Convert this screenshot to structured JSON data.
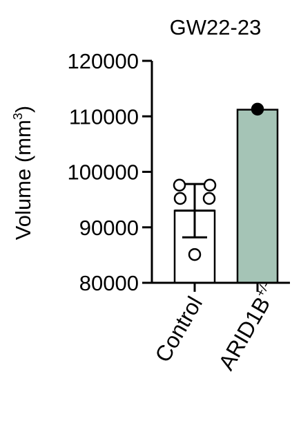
{
  "chart_data": {
    "type": "bar",
    "title": "GW22-23",
    "ylabel": "Volume (mm",
    "ylabel_superscript": "3",
    "ylabel_suffix": ")",
    "xlabel": "",
    "ylim": [
      80000,
      120000
    ],
    "yticks": [
      80000,
      90000,
      100000,
      110000,
      120000
    ],
    "ytick_labels": [
      "80000",
      "90000",
      "100000",
      "110000",
      "120000"
    ],
    "categories": [
      "Control",
      "ARID1B+/-"
    ],
    "category_label_parts": [
      {
        "main": "Control",
        "superscript": ""
      },
      {
        "main": "ARID1B",
        "superscript": "+/-"
      }
    ],
    "values": [
      93000,
      111200
    ],
    "error_sd": [
      4800,
      null
    ],
    "points": [
      [
        97600,
        97600,
        95200,
        95200,
        85100
      ],
      [
        111300
      ]
    ],
    "bar_colors": [
      "#ffffff",
      "#a5c4b6"
    ],
    "point_fill": [
      "#ffffff",
      "#000000"
    ],
    "grid": false,
    "legend": "none"
  }
}
